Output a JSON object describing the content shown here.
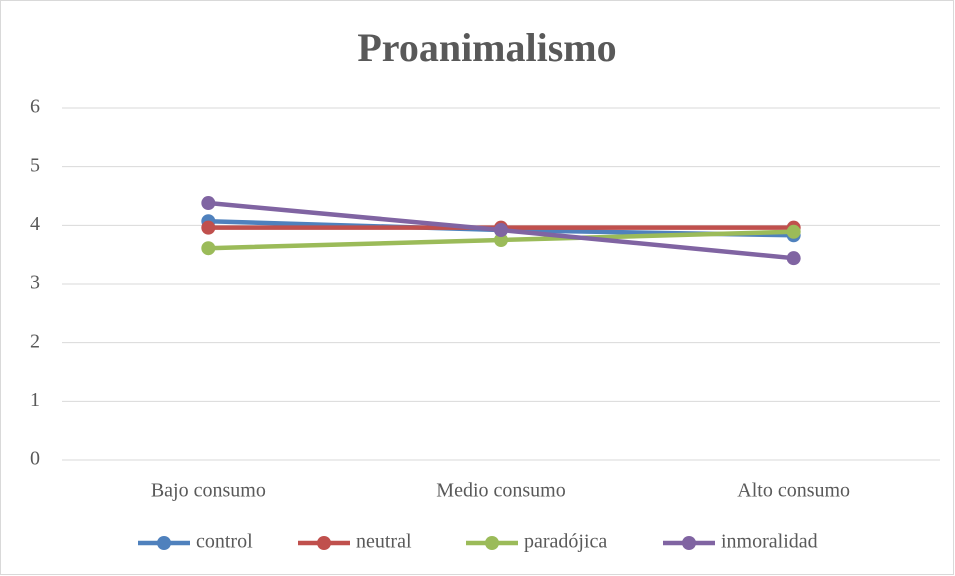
{
  "chart_data": {
    "type": "line",
    "title": "Proanimalismo",
    "categories": [
      "Bajo consumo",
      "Medio consumo",
      "Alto consumo"
    ],
    "series": [
      {
        "name": "control",
        "color": "#4f81bd",
        "values": [
          4.07,
          3.92,
          3.83
        ]
      },
      {
        "name": "neutral",
        "color": "#c0504d",
        "values": [
          3.96,
          3.96,
          3.96
        ]
      },
      {
        "name": "paradójica",
        "color": "#9bbb59",
        "values": [
          3.61,
          3.75,
          3.89
        ]
      },
      {
        "name": "inmoralidad",
        "color": "#8064a2",
        "values": [
          4.38,
          3.92,
          3.44
        ]
      }
    ],
    "ylim": [
      0,
      6
    ],
    "yticks": [
      0,
      1,
      2,
      3,
      4,
      5,
      6
    ],
    "grid": true,
    "legend": "bottom"
  }
}
